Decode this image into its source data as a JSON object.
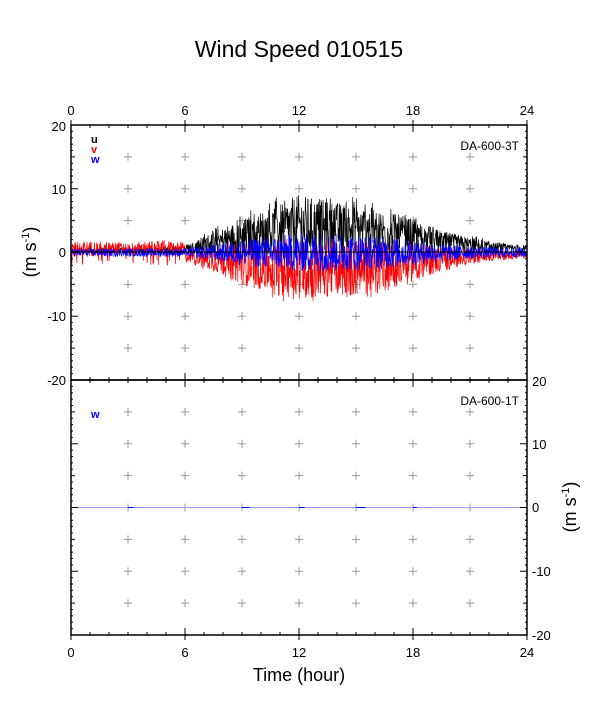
{
  "title": "Wind Speed 010515",
  "colors": {
    "u": "#000000",
    "v": "#ff0000",
    "w": "#0000ff",
    "grid": "#9a9a9a"
  },
  "chart_data": [
    {
      "type": "line",
      "label": "DA-600-3T",
      "x_ticks": [
        "0",
        "6",
        "12",
        "18",
        "24"
      ],
      "y_ticks": [
        "20",
        "10",
        "0",
        "-10",
        "-20"
      ],
      "ylabel_main": "(m s",
      "ylabel_sup": "-1",
      "ylabel_tail": ")",
      "xlim": [
        0,
        24
      ],
      "ylim": [
        -20,
        20
      ],
      "grid": "plus markers every 3 h and 5 m s-1",
      "legend": "top-left",
      "series": [
        {
          "name": "u",
          "x": [
            0,
            3,
            5,
            6,
            7.5,
            9,
            10.5,
            12,
            13.5,
            15,
            16.5,
            18,
            19.5,
            21,
            22.5,
            24
          ],
          "amplitude": [
            0.5,
            0.7,
            0.8,
            1.2,
            3.5,
            5.5,
            7.5,
            9.5,
            8.5,
            8,
            7,
            5.5,
            3.5,
            2.5,
            1.5,
            1.2
          ]
        },
        {
          "name": "v",
          "x": [
            0,
            3,
            5,
            6,
            7.5,
            9,
            10.5,
            12,
            13.5,
            15,
            16.5,
            18,
            19.5,
            21,
            22.5,
            24
          ],
          "amplitude": [
            2,
            1.5,
            2,
            1.5,
            3,
            5,
            6.5,
            7.5,
            7,
            7,
            6,
            4.5,
            3,
            1.8,
            1.2,
            1
          ]
        },
        {
          "name": "w",
          "x": [
            0,
            3,
            5,
            6,
            7.5,
            9,
            10.5,
            12,
            13.5,
            15,
            16.5,
            18,
            19.5,
            21,
            22.5,
            24
          ],
          "amplitude": [
            0.8,
            0.8,
            0.8,
            0.8,
            1.5,
            2.5,
            3.2,
            3.8,
            3.8,
            3.5,
            3.2,
            2.5,
            1.8,
            1.2,
            1,
            1
          ]
        }
      ]
    },
    {
      "type": "line",
      "label": "DA-600-1T",
      "x_ticks": [
        "0",
        "6",
        "12",
        "18",
        "24"
      ],
      "y_ticks": [
        "20",
        "10",
        "0",
        "-10",
        "-20"
      ],
      "ylabel_main": "(m s",
      "ylabel_sup": "-1",
      "ylabel_tail": ")",
      "xlabel": "Time (hour)",
      "xlim": [
        0,
        24
      ],
      "ylim": [
        -20,
        20
      ],
      "legend": "top-left",
      "series": [
        {
          "name": "w",
          "x": [
            0,
            6,
            12,
            18,
            24
          ],
          "values": [
            0,
            0,
            0,
            0,
            0
          ]
        }
      ]
    }
  ]
}
